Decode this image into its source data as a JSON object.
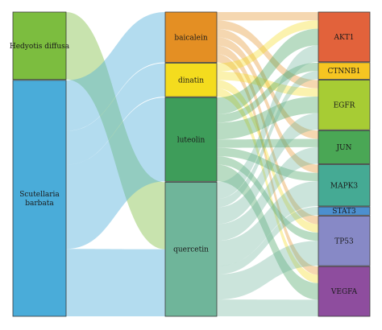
{
  "diagram": {
    "columns": [
      {
        "key": "herbs",
        "nodes": [
          {
            "id": "hedyotis",
            "label_lines": [
              "Hedyotis diffusa"
            ],
            "color": "#7cbd3f",
            "value": 4
          },
          {
            "id": "scutellaria",
            "label_lines": [
              "Scutellaria",
              "barbata"
            ],
            "color": "#4aacd9",
            "value": 14
          }
        ]
      },
      {
        "key": "compounds",
        "nodes": [
          {
            "id": "baicalein",
            "label_lines": [
              "baicalein"
            ],
            "color": "#e48f23",
            "value": 3
          },
          {
            "id": "dinatin",
            "label_lines": [
              "dinatin"
            ],
            "color": "#f4dc1e",
            "value": 2
          },
          {
            "id": "luteolin",
            "label_lines": [
              "luteolin"
            ],
            "color": "#3e9d5a",
            "value": 5
          },
          {
            "id": "quercetin",
            "label_lines": [
              "quercetin"
            ],
            "color": "#6fb59a",
            "value": 8
          }
        ]
      },
      {
        "key": "targets",
        "nodes": [
          {
            "id": "AKT1",
            "label_lines": [
              "AKT1"
            ],
            "color": "#e2623b",
            "value": 3
          },
          {
            "id": "CTNNB1",
            "label_lines": [
              "CTNNB1"
            ],
            "color": "#f6c521",
            "value": 1
          },
          {
            "id": "EGFR",
            "label_lines": [
              "EGFR"
            ],
            "color": "#a7cc34",
            "value": 3
          },
          {
            "id": "JUN",
            "label_lines": [
              "JUN"
            ],
            "color": "#4aa755",
            "value": 2
          },
          {
            "id": "MAPK3",
            "label_lines": [
              "MAPK3"
            ],
            "color": "#45aa94",
            "value": 2.5
          },
          {
            "id": "STAT3",
            "label_lines": [
              "STAT3"
            ],
            "color": "#4c8fcf",
            "value": 0.5
          },
          {
            "id": "TP53",
            "label_lines": [
              "TP53"
            ],
            "color": "#8789c6",
            "value": 3
          },
          {
            "id": "VEGFA",
            "label_lines": [
              "VEGFA"
            ],
            "color": "#8e4d9e",
            "value": 3
          }
        ]
      }
    ],
    "links": [
      {
        "source": "hedyotis",
        "target": "quercetin",
        "value": 4
      },
      {
        "source": "scutellaria",
        "target": "baicalein",
        "value": 3
      },
      {
        "source": "scutellaria",
        "target": "dinatin",
        "value": 2
      },
      {
        "source": "scutellaria",
        "target": "luteolin",
        "value": 5
      },
      {
        "source": "scutellaria",
        "target": "quercetin",
        "value": 4
      },
      {
        "source": "baicalein",
        "target": "AKT1",
        "value": 0.5
      },
      {
        "source": "baicalein",
        "target": "EGFR",
        "value": 0.5
      },
      {
        "source": "baicalein",
        "target": "JUN",
        "value": 0.5
      },
      {
        "source": "baicalein",
        "target": "MAPK3",
        "value": 0.5
      },
      {
        "source": "baicalein",
        "target": "TP53",
        "value": 0.5
      },
      {
        "source": "baicalein",
        "target": "VEGFA",
        "value": 0.5
      },
      {
        "source": "dinatin",
        "target": "AKT1",
        "value": 0.5
      },
      {
        "source": "dinatin",
        "target": "EGFR",
        "value": 0.5
      },
      {
        "source": "dinatin",
        "target": "TP53",
        "value": 0.5
      },
      {
        "source": "dinatin",
        "target": "VEGFA",
        "value": 0.5
      },
      {
        "source": "luteolin",
        "target": "AKT1",
        "value": 1
      },
      {
        "source": "luteolin",
        "target": "CTNNB1",
        "value": 0.5
      },
      {
        "source": "luteolin",
        "target": "EGFR",
        "value": 1
      },
      {
        "source": "luteolin",
        "target": "JUN",
        "value": 0.5
      },
      {
        "source": "luteolin",
        "target": "MAPK3",
        "value": 0.5
      },
      {
        "source": "luteolin",
        "target": "TP53",
        "value": 0.5
      },
      {
        "source": "luteolin",
        "target": "VEGFA",
        "value": 1
      },
      {
        "source": "quercetin",
        "target": "AKT1",
        "value": 1
      },
      {
        "source": "quercetin",
        "target": "CTNNB1",
        "value": 0.5
      },
      {
        "source": "quercetin",
        "target": "EGFR",
        "value": 1
      },
      {
        "source": "quercetin",
        "target": "JUN",
        "value": 1
      },
      {
        "source": "quercetin",
        "target": "MAPK3",
        "value": 1.5
      },
      {
        "source": "quercetin",
        "target": "STAT3",
        "value": 0.5
      },
      {
        "source": "quercetin",
        "target": "TP53",
        "value": 1.5
      },
      {
        "source": "quercetin",
        "target": "VEGFA",
        "value": 1
      }
    ]
  }
}
